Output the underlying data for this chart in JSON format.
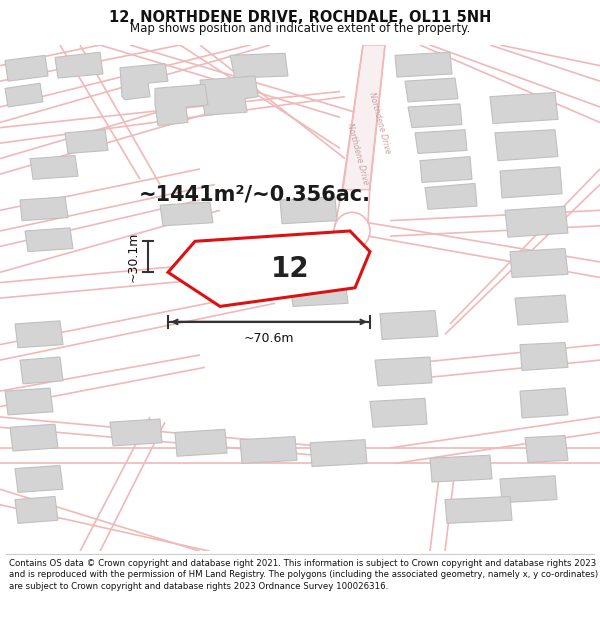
{
  "title": "12, NORTHDENE DRIVE, ROCHDALE, OL11 5NH",
  "subtitle": "Map shows position and indicative extent of the property.",
  "footer": "Contains OS data © Crown copyright and database right 2021. This information is subject to Crown copyright and database rights 2023 and is reproduced with the permission of HM Land Registry. The polygons (including the associated geometry, namely x, y co-ordinates) are subject to Crown copyright and database rights 2023 Ordnance Survey 100026316.",
  "area_label": "~1441m²/~0.356ac.",
  "property_number": "12",
  "width_label": "~70.6m",
  "height_label": "~30.1m",
  "bg_color": "#ffffff",
  "road_line_color": "#f0b8b8",
  "road_fill_color": "#fce8e8",
  "building_fill": "#d4d4d4",
  "building_edge": "#c0c0c0",
  "highlight_edge": "#dd1111",
  "dim_line_color": "#333333",
  "road_label_color": "#c8a0a0",
  "title_fontsize": 10.5,
  "subtitle_fontsize": 8.5,
  "footer_fontsize": 6.2,
  "area_fontsize": 15,
  "number_fontsize": 20,
  "dim_fontsize": 9
}
